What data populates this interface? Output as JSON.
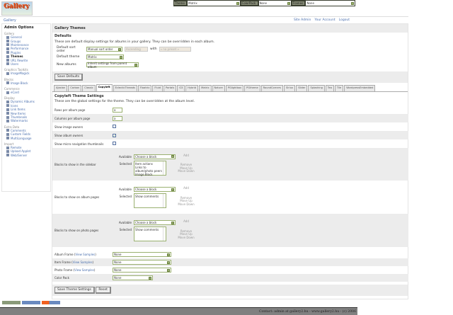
{
  "topbar": {
    "theme_label": "Theme:",
    "theme_value": "Matrix",
    "colorpack_label": "ColorPack:",
    "colorpack_value": "None",
    "frames_label": "Frames:",
    "frames_value": "None"
  },
  "logo_text": "Gallery",
  "breadcrumb": "Gallery",
  "header_links": [
    "Site Admin",
    "Your Account",
    "Logout"
  ],
  "sidebar": {
    "title": "Admin Options",
    "groups": [
      {
        "label": "Gallery",
        "items": [
          {
            "label": "General"
          },
          {
            "label": "Groups"
          },
          {
            "label": "Maintenance"
          },
          {
            "label": "Performance"
          },
          {
            "label": "Plugins"
          },
          {
            "label": "Themes",
            "active": true
          },
          {
            "label": "URL Rewrite"
          },
          {
            "label": "Users"
          }
        ]
      },
      {
        "label": "Graphics Toolkits",
        "items": [
          {
            "label": "ImageMagick"
          }
        ]
      },
      {
        "label": "Blocks",
        "items": [
          {
            "label": "Image Block"
          }
        ]
      },
      {
        "label": "Commerce",
        "items": [
          {
            "label": "eCard"
          }
        ]
      },
      {
        "label": "Display",
        "items": [
          {
            "label": "Dynamic Albums"
          },
          {
            "label": "Icons"
          },
          {
            "label": "Link Items"
          },
          {
            "label": "New Items"
          },
          {
            "label": "Thumbnails"
          },
          {
            "label": "Watermarks"
          }
        ]
      },
      {
        "label": "Extra Data",
        "items": [
          {
            "label": "Comments"
          },
          {
            "label": "Custom Fields"
          },
          {
            "label": "MultiLanguage"
          }
        ]
      },
      {
        "label": "Import",
        "items": [
          {
            "label": "Remote"
          },
          {
            "label": "Upload Applet"
          },
          {
            "label": "Web/Server"
          }
        ]
      }
    ]
  },
  "main": {
    "title": "Gallery Themes",
    "defaults": {
      "heading": "Defaults",
      "description": "These are default display settings for albums in your gallery. They can be overridden in each album.",
      "sort_label": "Default sort order",
      "sort_value": "Manual sort order",
      "sort_dir": "Ascending",
      "with_label": "with",
      "with_value": "« no preset »",
      "theme_label": "Default theme",
      "theme_value": "Matrix",
      "new_label": "New albums",
      "new_value": "Inherit settings from parent album",
      "save_button": "Save Defaults"
    },
    "tabs": [
      {
        "label": "Ajaxian"
      },
      {
        "label": "Carbon"
      },
      {
        "label": "Classic"
      },
      {
        "label": "Copyleft",
        "active": true
      },
      {
        "label": "EclecticThreads"
      },
      {
        "label": "Floatrix"
      },
      {
        "label": "Fluid"
      },
      {
        "label": "Portals"
      },
      {
        "label": "G3"
      },
      {
        "label": "Hybrid"
      },
      {
        "label": "Matrix"
      },
      {
        "label": "Nature"
      },
      {
        "label": "PGlightbox"
      },
      {
        "label": "PGtheme"
      },
      {
        "label": "RoundCorners"
      },
      {
        "label": "Siriux"
      },
      {
        "label": "Slider"
      },
      {
        "label": "Splashing"
      },
      {
        "label": "Tea"
      },
      {
        "label": "Tile"
      },
      {
        "label": "WordpressEmbedded"
      }
    ],
    "theme_settings": {
      "heading": "Copyleft Theme Settings",
      "description": "These are the global settings for the theme. They can be overridden at the album level.",
      "rows_label": "Rows per album page",
      "rows_value": "3",
      "cols_label": "Columns per album page",
      "cols_value": "3",
      "image_owners_label": "Show image owners",
      "image_owners_checked": false,
      "album_owners_label": "Show album owners",
      "album_owners_checked": true,
      "micro_label": "Show micro navigation thumbnails",
      "micro_checked": false,
      "available_label": "Available",
      "selected_label": "Selected",
      "choose": "Choose a block",
      "add": "Add",
      "remove": "Remove",
      "move_up": "Move Up",
      "move_down": "Move Down",
      "sidebar_blocks_label": "Blocks to show in the sidebar",
      "sidebar_blocks": [
        "Item actions",
        "Links to album/photo peers",
        "Image Block"
      ],
      "album_blocks_label": "Blocks to show on album pages",
      "album_blocks": [
        "Show comments"
      ],
      "photo_blocks_label": "Blocks to show on photo pages",
      "photo_blocks": [
        "Show comments"
      ],
      "view_samples": "View Samples",
      "album_frame_label": "Album Frame",
      "album_frame_value": "None",
      "item_frame_label": "Item Frame",
      "item_frame_value": "None",
      "photo_frame_label": "Photo Frame",
      "photo_frame_value": "None",
      "color_pack_label": "Color Pack",
      "color_pack_value": "None",
      "save_button": "Save Theme Settings",
      "reset_button": "Reset"
    }
  },
  "footer": "Contact: admin at gallery2.hu - www.gallery2.hu - (c) 2006"
}
